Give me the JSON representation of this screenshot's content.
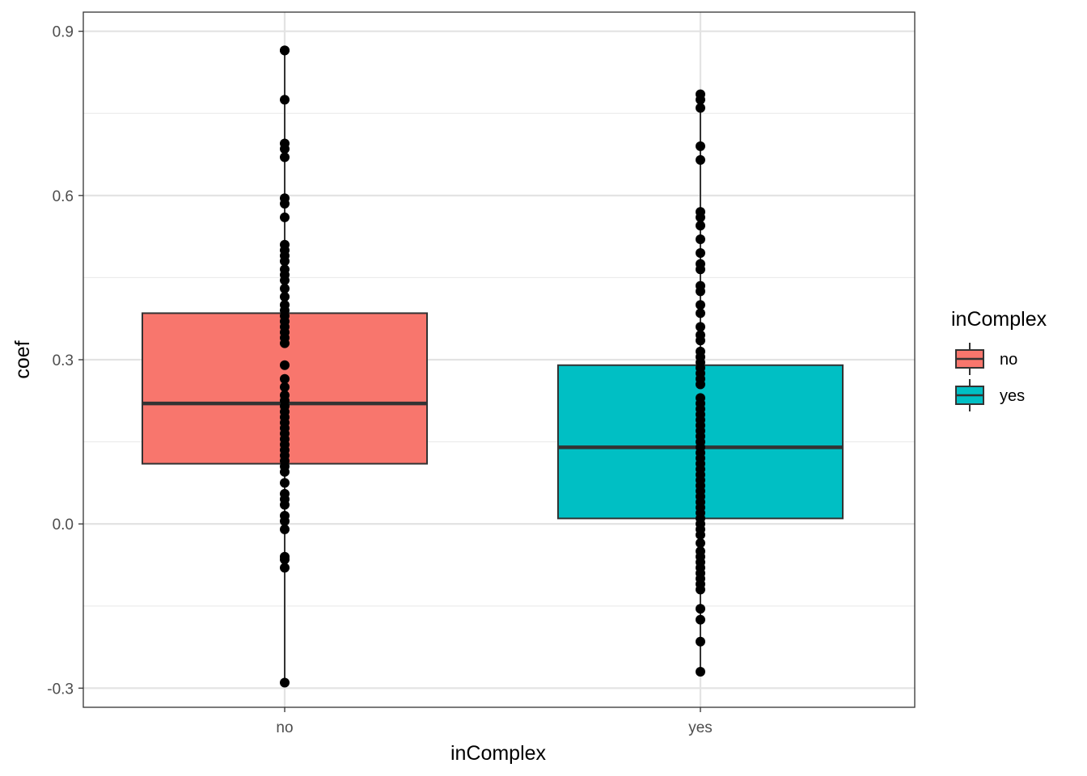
{
  "chart_data": {
    "type": "boxplot",
    "xlabel": "inComplex",
    "ylabel": "coef",
    "categories": [
      "no",
      "yes"
    ],
    "ylim": [
      -0.335,
      0.935
    ],
    "yticks": [
      -0.3,
      0.0,
      0.3,
      0.6,
      0.9
    ],
    "ytick_labels": [
      "-0.3",
      "0.0",
      "0.3",
      "0.6",
      "0.9"
    ],
    "grid": true,
    "legend": {
      "title": "inComplex",
      "placement": "right",
      "entries": [
        {
          "label": "no",
          "color": "#F8766D"
        },
        {
          "label": "yes",
          "color": "#00BFC4"
        }
      ]
    },
    "series": [
      {
        "category": "no",
        "color": "#F8766D",
        "q1": 0.11,
        "median": 0.22,
        "q3": 0.385,
        "whisker_low": -0.29,
        "whisker_high": 0.865,
        "points": [
          0.865,
          0.865,
          0.775,
          0.695,
          0.685,
          0.67,
          0.595,
          0.585,
          0.56,
          0.51,
          0.5,
          0.49,
          0.48,
          0.465,
          0.455,
          0.445,
          0.43,
          0.415,
          0.4,
          0.39,
          0.38,
          0.37,
          0.36,
          0.35,
          0.34,
          0.33,
          0.29,
          0.265,
          0.25,
          0.235,
          0.225,
          0.215,
          0.205,
          0.195,
          0.185,
          0.175,
          0.165,
          0.155,
          0.145,
          0.135,
          0.125,
          0.115,
          0.105,
          0.095,
          0.075,
          0.055,
          0.045,
          0.035,
          0.015,
          0.005,
          -0.01,
          -0.06,
          -0.065,
          -0.08,
          -0.29
        ]
      },
      {
        "category": "yes",
        "color": "#00BFC4",
        "q1": 0.01,
        "median": 0.14,
        "q3": 0.29,
        "whisker_low": -0.27,
        "whisker_high": 0.785,
        "points": [
          0.785,
          0.775,
          0.76,
          0.69,
          0.665,
          0.57,
          0.56,
          0.545,
          0.52,
          0.495,
          0.475,
          0.465,
          0.435,
          0.425,
          0.4,
          0.385,
          0.36,
          0.345,
          0.335,
          0.315,
          0.305,
          0.295,
          0.285,
          0.275,
          0.265,
          0.255,
          0.23,
          0.22,
          0.21,
          0.2,
          0.19,
          0.18,
          0.17,
          0.16,
          0.15,
          0.14,
          0.13,
          0.12,
          0.11,
          0.1,
          0.09,
          0.08,
          0.07,
          0.06,
          0.05,
          0.04,
          0.03,
          0.02,
          0.01,
          0.0,
          -0.01,
          -0.02,
          -0.035,
          -0.05,
          -0.06,
          -0.07,
          -0.08,
          -0.09,
          -0.1,
          -0.11,
          -0.12,
          -0.155,
          -0.175,
          -0.215,
          -0.27
        ]
      }
    ]
  }
}
